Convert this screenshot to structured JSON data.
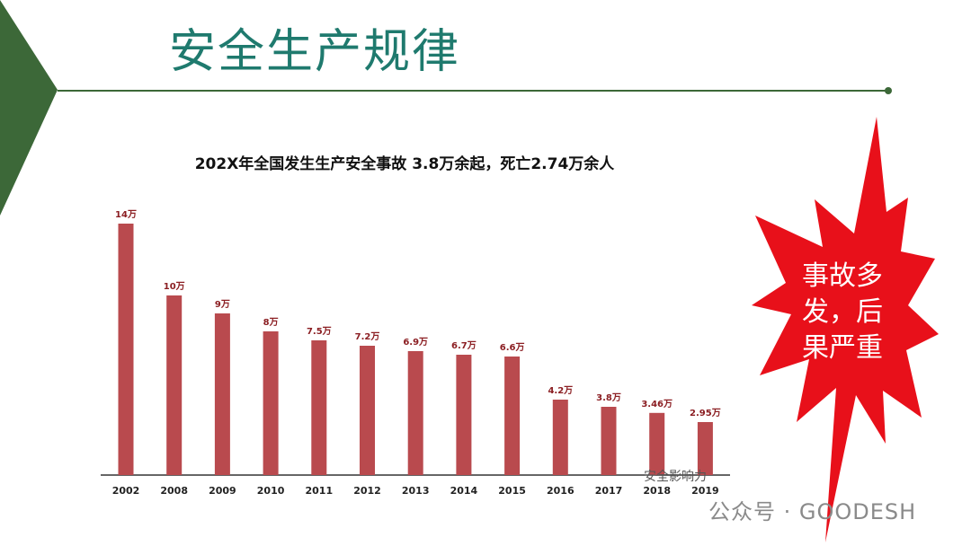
{
  "slide": {
    "title": "安全生产规律",
    "subtitle": "202X年全国发生生产安全事故 3.8万余起，死亡2.74万余人",
    "callout": [
      "事故多",
      "发，后",
      "果严重"
    ],
    "watermark_overlay": "安全影响力",
    "watermark_brand": "公众号 · GOODESH"
  },
  "colors": {
    "bar": "#b94a4e",
    "title": "#1f7a6e",
    "burst": "#e8101a",
    "left_triangle": "#3c6838",
    "rule": "#3c6838"
  },
  "chart_data": {
    "type": "bar",
    "title": "",
    "xlabel": "",
    "ylabel": "",
    "categories": [
      "2002",
      "2008",
      "2009",
      "2010",
      "2011",
      "2012",
      "2013",
      "2014",
      "2015",
      "2016",
      "2017",
      "2018",
      "2019"
    ],
    "values": [
      14,
      10,
      9,
      8,
      7.5,
      7.2,
      6.9,
      6.7,
      6.6,
      4.2,
      3.8,
      3.46,
      2.95
    ],
    "data_labels": [
      "14万",
      "10万",
      "9万",
      "8万",
      "7.5万",
      "7.2万",
      "6.9万",
      "6.7万",
      "6.6万",
      "4.2万",
      "3.8万",
      "3.46万",
      "2.95万"
    ],
    "unit": "万",
    "ylim": [
      0,
      14
    ],
    "grid": false,
    "legend": "none"
  }
}
